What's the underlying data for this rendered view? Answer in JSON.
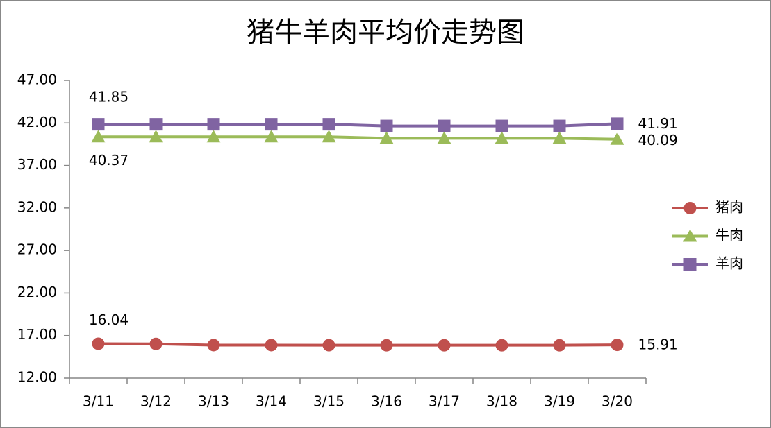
{
  "chart_data": {
    "type": "line",
    "title": "猪牛羊肉平均价走势图",
    "categories": [
      "3/11",
      "3/12",
      "3/13",
      "3/14",
      "3/15",
      "3/16",
      "3/17",
      "3/18",
      "3/19",
      "3/20"
    ],
    "series": [
      {
        "name": "猪肉",
        "color": "#c0504d",
        "marker": "circle",
        "values": [
          16.04,
          16.02,
          15.88,
          15.88,
          15.87,
          15.86,
          15.86,
          15.86,
          15.86,
          15.91
        ]
      },
      {
        "name": "牛肉",
        "color": "#9bbb59",
        "marker": "triangle",
        "values": [
          40.37,
          40.37,
          40.37,
          40.37,
          40.37,
          40.2,
          40.2,
          40.2,
          40.2,
          40.09
        ]
      },
      {
        "name": "羊肉",
        "color": "#8064a2",
        "marker": "square",
        "values": [
          41.85,
          41.85,
          41.85,
          41.85,
          41.85,
          41.65,
          41.65,
          41.65,
          41.65,
          41.91
        ]
      }
    ],
    "ylim": [
      12,
      47
    ],
    "yticks": [
      {
        "value": 12,
        "label": "12.00"
      },
      {
        "value": 17,
        "label": "17.00"
      },
      {
        "value": 22,
        "label": "22.00"
      },
      {
        "value": 27,
        "label": "27.00"
      },
      {
        "value": 32,
        "label": "32.00"
      },
      {
        "value": 37,
        "label": "37.00"
      },
      {
        "value": 42,
        "label": "42.00"
      },
      {
        "value": 47,
        "label": "47.00"
      }
    ],
    "grid": false,
    "legend": "right"
  }
}
